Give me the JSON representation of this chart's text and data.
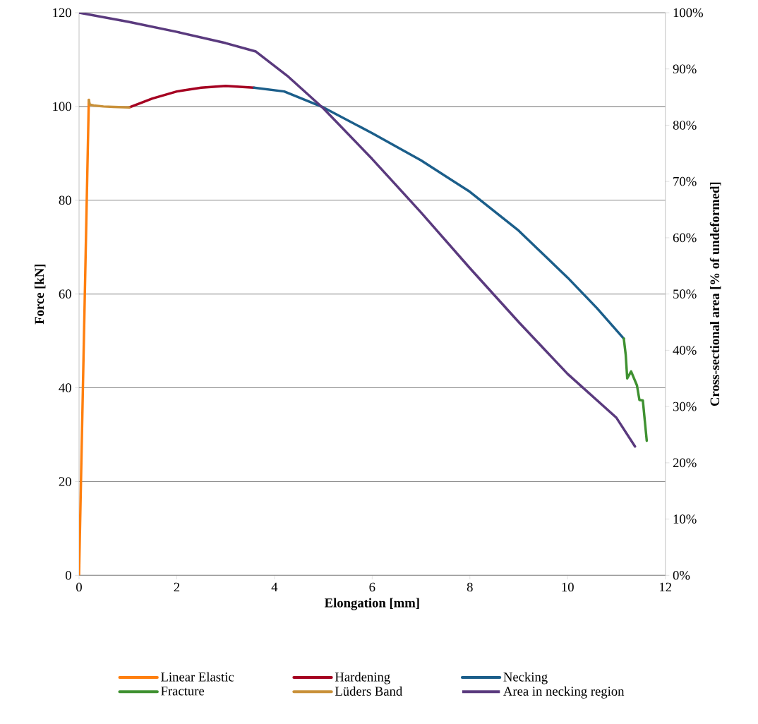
{
  "chart_data": {
    "type": "line",
    "xlabel": "Elongation [mm]",
    "ylabel": "Force [kN]",
    "y2label": "Cross-sectional area [% of undeformed]",
    "xlim": [
      0,
      12
    ],
    "xticks": [
      0,
      2,
      4,
      6,
      8,
      10,
      12
    ],
    "ylim": [
      0,
      120
    ],
    "yticks": [
      0,
      20,
      40,
      60,
      80,
      100,
      120
    ],
    "y2lim": [
      0,
      100
    ],
    "y2ticks": [
      {
        "value": 0,
        "label": "0%"
      },
      {
        "value": 10,
        "label": "10%"
      },
      {
        "value": 20,
        "label": "20%"
      },
      {
        "value": 30,
        "label": "30%"
      },
      {
        "value": 40,
        "label": "40%"
      },
      {
        "value": 50,
        "label": "50%"
      },
      {
        "value": 60,
        "label": "60%"
      },
      {
        "value": 70,
        "label": "70%"
      },
      {
        "value": 80,
        "label": "80%"
      },
      {
        "value": 90,
        "label": "90%"
      },
      {
        "value": 100,
        "label": "100%"
      }
    ],
    "grid": "y",
    "legend": "bottom",
    "marker": "none",
    "line_style": "solid",
    "series": [
      {
        "name": "Linear Elastic",
        "color": "#ff7f0e",
        "x": [
          0,
          0.2
        ],
        "values": [
          0,
          101.4
        ]
      },
      {
        "name": "Hardening",
        "color": "#a50021",
        "x": [
          1.03,
          1.5,
          2,
          2.5,
          3,
          3.58
        ],
        "values": [
          99.8,
          101.7,
          103.2,
          104,
          104.4,
          104
        ]
      },
      {
        "name": "Necking",
        "color": "#1b5e8a",
        "x": [
          3.58,
          4.2,
          5,
          6,
          7,
          8,
          9,
          10,
          10.6,
          11.15
        ],
        "values": [
          104,
          103.2,
          99.8,
          94.3,
          88.5,
          81.8,
          73.5,
          63.5,
          57,
          50.5
        ]
      },
      {
        "name": "Fracture",
        "color": "#3f9131",
        "x": [
          11.15,
          11.19,
          11.22,
          11.3,
          11.42,
          11.47,
          11.54,
          11.58,
          11.62
        ],
        "values": [
          50.5,
          47,
          42,
          43.5,
          40.5,
          37.4,
          37.3,
          33,
          28.7
        ]
      },
      {
        "name": "Lüders Band",
        "color": "#c9913a",
        "x": [
          0.2,
          0.22,
          0.3,
          0.5,
          0.7,
          1.03
        ],
        "values": [
          101.4,
          100.4,
          100.2,
          100,
          99.9,
          99.8
        ]
      },
      {
        "name": "Area in necking region",
        "color": "#5a3a7e",
        "axis": "y2",
        "x": [
          0,
          1,
          2,
          3,
          3.62,
          4.26,
          5,
          6,
          7,
          8,
          9,
          10,
          11,
          11.38
        ],
        "values": [
          100,
          98.4,
          96.6,
          94.6,
          93.1,
          88.8,
          83,
          74,
          64.5,
          54.6,
          45,
          35.8,
          28,
          22.9
        ]
      }
    ]
  }
}
